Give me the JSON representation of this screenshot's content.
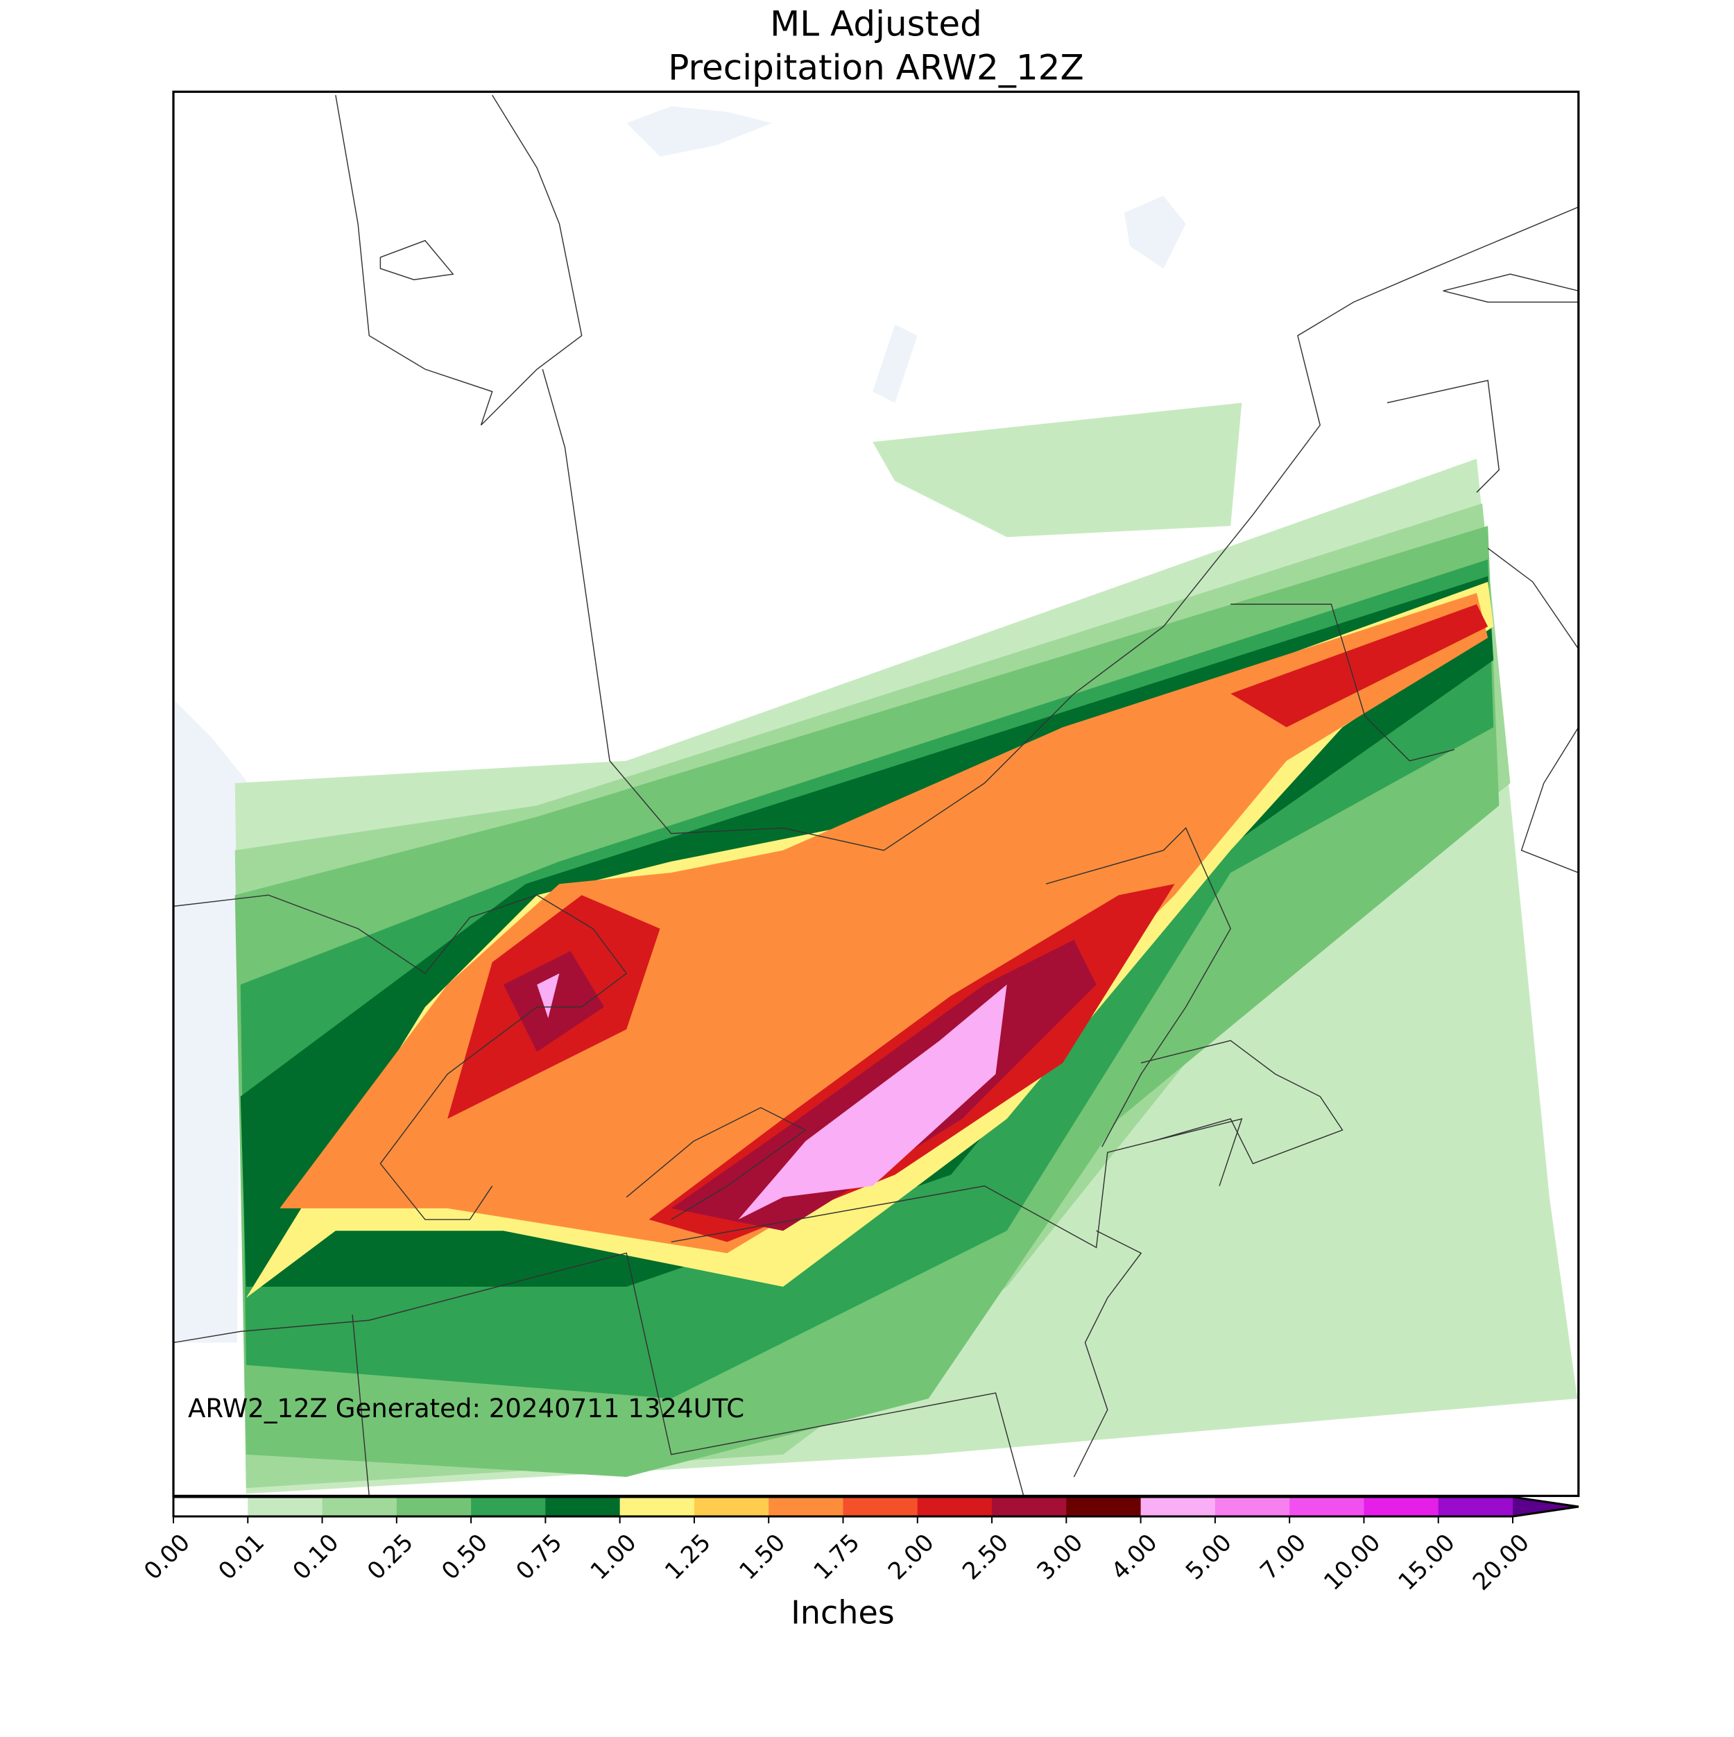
{
  "type": "map",
  "title": "ML Adjusted",
  "subtitle": "Precipitation ARW2_12Z",
  "annotation": "ARW2_12Z Generated: 20240711 1324UTC",
  "colorbar": {
    "label": "Inches",
    "ticks": [
      {
        "value": 0,
        "label": "0.00"
      },
      {
        "value": 0.01,
        "label": "0.01"
      },
      {
        "value": 0.1,
        "label": "0.10"
      },
      {
        "value": 0.25,
        "label": "0.25"
      },
      {
        "value": 0.5,
        "label": "0.50"
      },
      {
        "value": 0.75,
        "label": "0.75"
      },
      {
        "value": 1,
        "label": "1.00"
      },
      {
        "value": 1.25,
        "label": "1.25"
      },
      {
        "value": 1.5,
        "label": "1.50"
      },
      {
        "value": 1.75,
        "label": "1.75"
      },
      {
        "value": 2,
        "label": "2.00"
      },
      {
        "value": 2.5,
        "label": "2.50"
      },
      {
        "value": 3,
        "label": "3.00"
      },
      {
        "value": 4,
        "label": "4.00"
      },
      {
        "value": 5,
        "label": "5.00"
      },
      {
        "value": 7,
        "label": "7.00"
      },
      {
        "value": 10,
        "label": "10.00"
      },
      {
        "value": 15,
        "label": "15.00"
      },
      {
        "value": 20,
        "label": "20.00"
      }
    ],
    "colors": [
      "#ffffff",
      "#c7e9c0",
      "#a1d99b",
      "#74c476",
      "#31a354",
      "#006d2c",
      "#fff380",
      "#ffcc4d",
      "#fd8d3c",
      "#f4502a",
      "#d7191c",
      "#a50f35",
      "#6b0000",
      "#f9aef5",
      "#f77ff0",
      "#f24ff0",
      "#e51ee8",
      "#9a0bce"
    ],
    "extend_color": "#5a008a"
  }
}
